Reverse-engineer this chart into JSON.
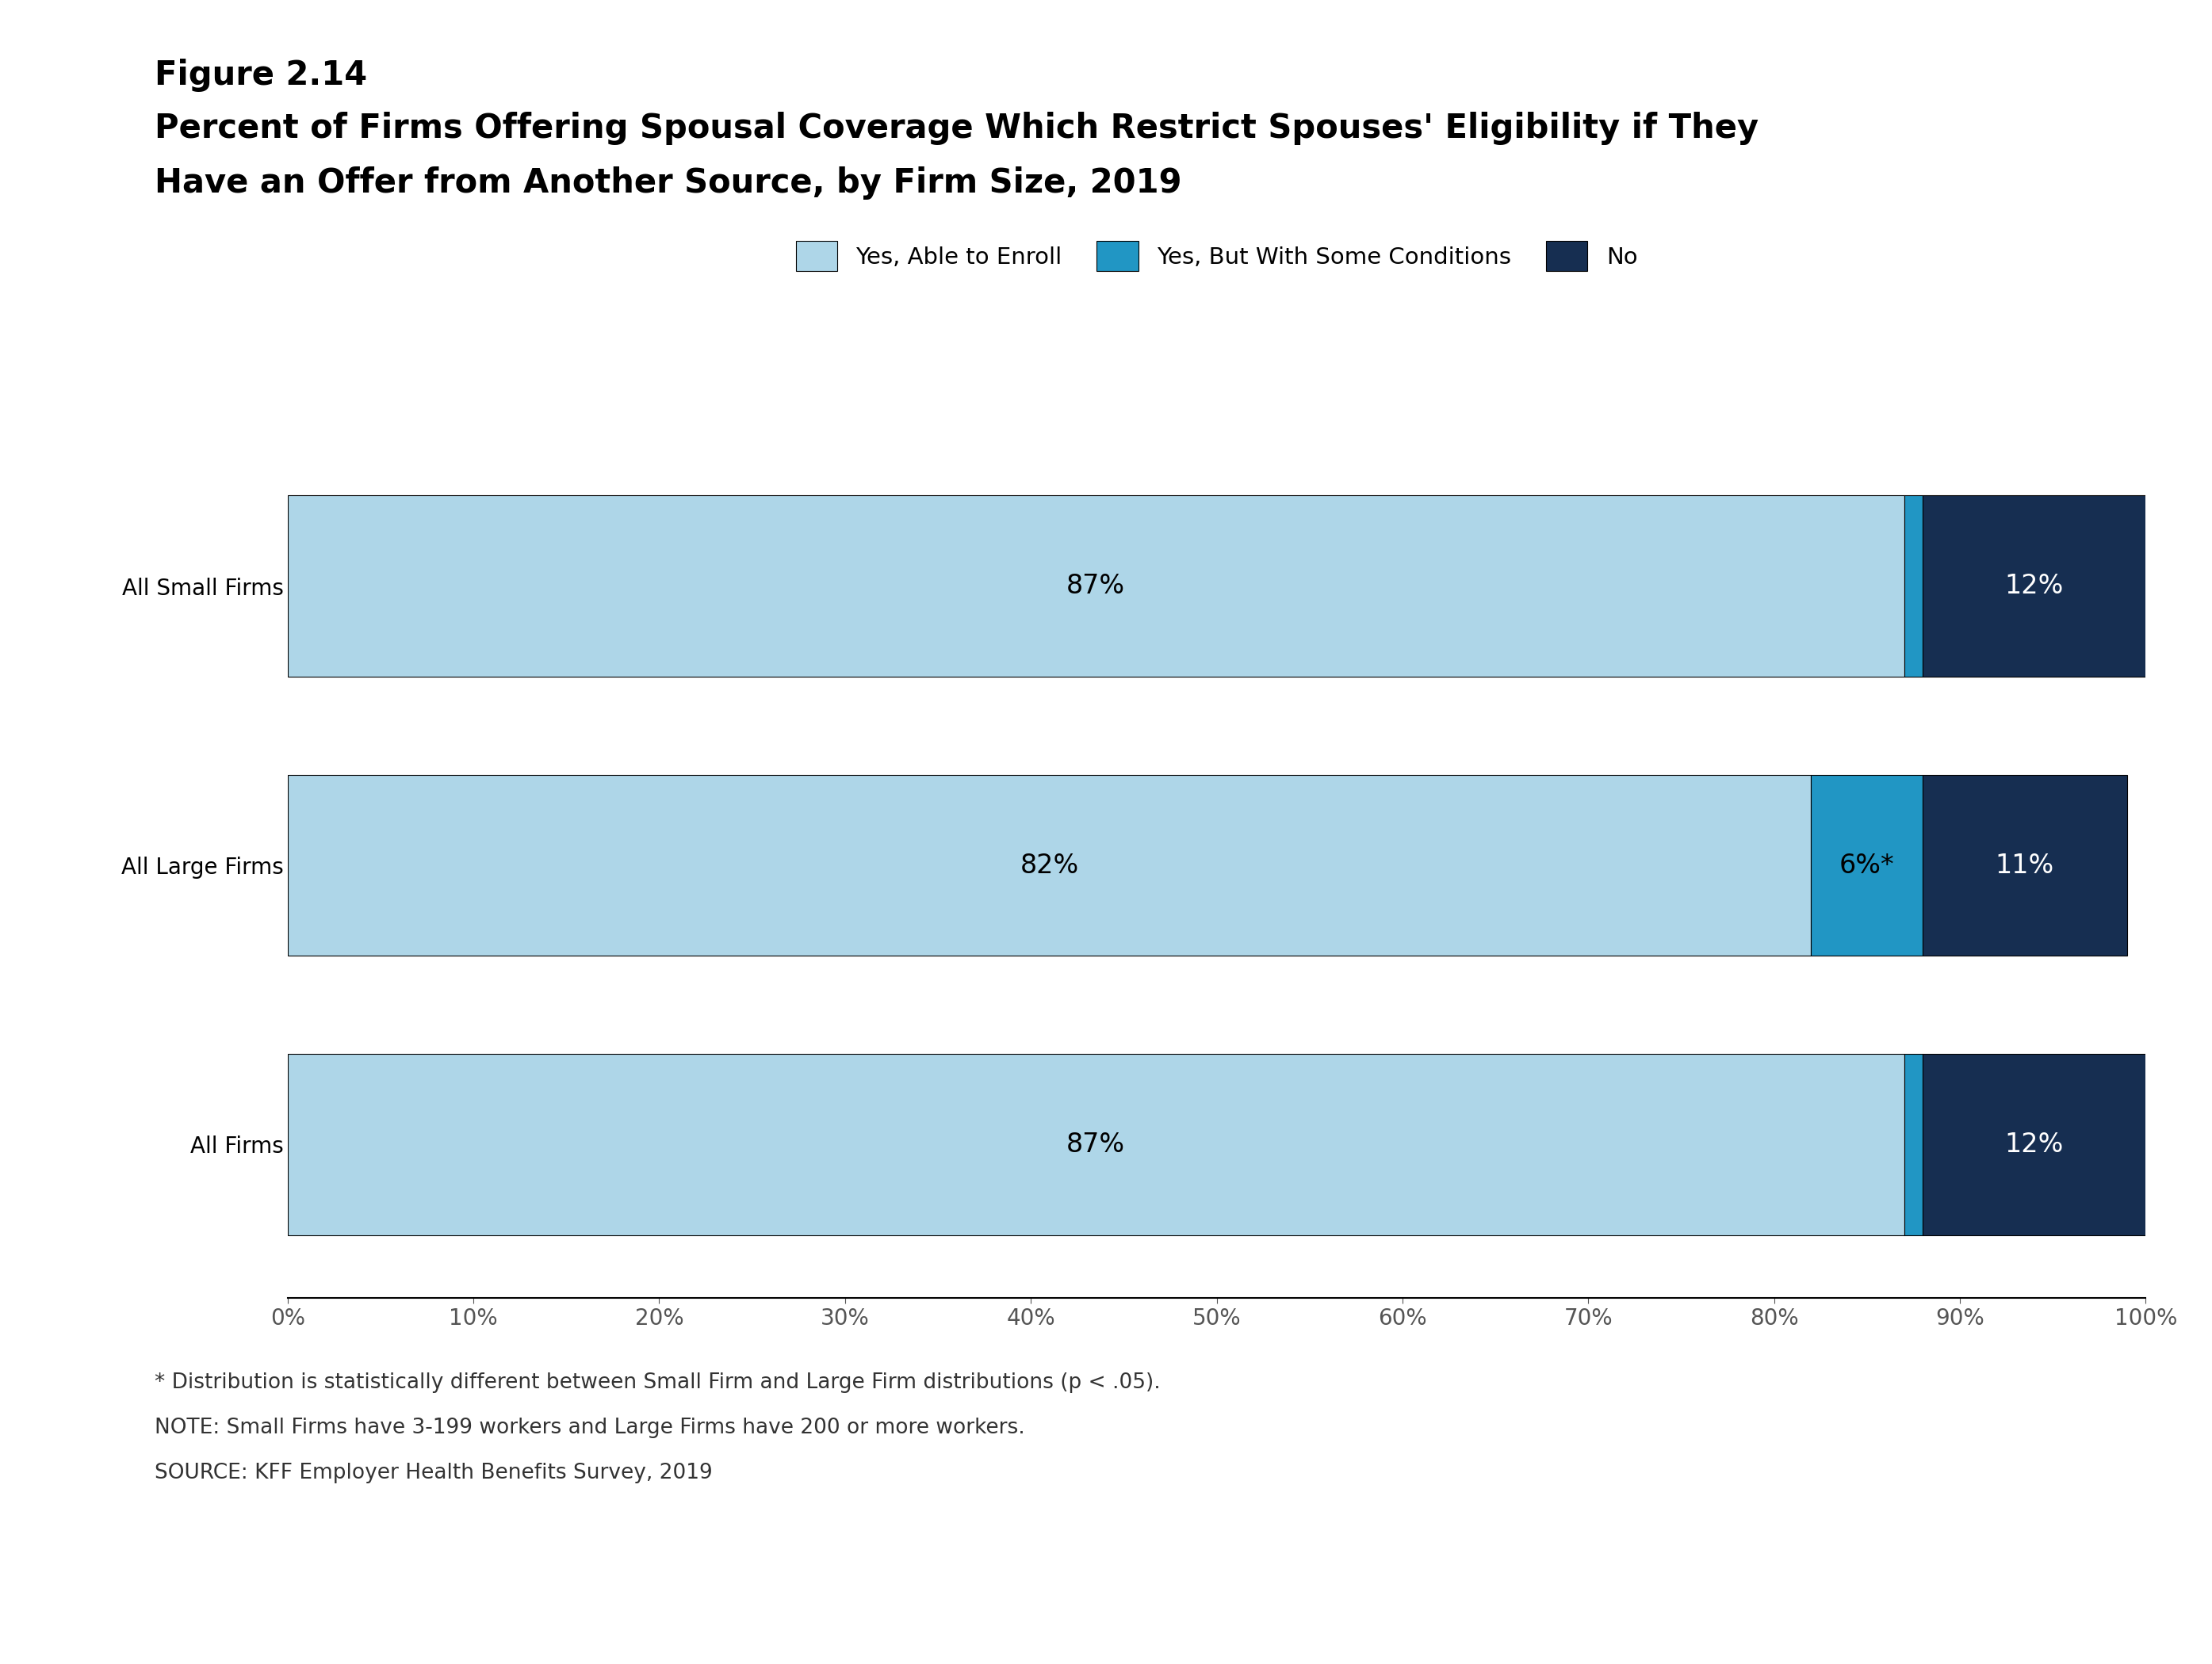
{
  "figure_label": "Figure 2.14",
  "title_line1": "Percent of Firms Offering Spousal Coverage Which Restrict Spouses' Eligibility if They",
  "title_line2": "Have an Offer from Another Source, by Firm Size, 2019",
  "categories": [
    "All Small Firms",
    "All Large Firms",
    "All Firms"
  ],
  "series": {
    "Yes, Able to Enroll": [
      87,
      82,
      87
    ],
    "Yes, But With Some Conditions": [
      1,
      6,
      1
    ],
    "No": [
      12,
      11,
      12
    ]
  },
  "bar_labels": {
    "Yes, Able to Enroll": [
      "87%",
      "82%",
      "87%"
    ],
    "Yes, But With Some Conditions": [
      "",
      "6%*",
      ""
    ],
    "No": [
      "12%",
      "11%",
      "12%"
    ]
  },
  "light_blue": "#aed6e8",
  "medium_blue": "#2196c4",
  "dark_blue": "#162e51",
  "xlim": [
    0,
    100
  ],
  "xticks": [
    0,
    10,
    20,
    30,
    40,
    50,
    60,
    70,
    80,
    90,
    100
  ],
  "footnote1": "* Distribution is statistically different between Small Firm and Large Firm distributions (p < .05).",
  "footnote2": "NOTE: Small Firms have 3-199 workers and Large Firms have 200 or more workers.",
  "footnote3": "SOURCE: KFF Employer Health Benefits Survey, 2019",
  "legend_labels": [
    "Yes, Able to Enroll",
    "Yes, But With Some Conditions",
    "No"
  ],
  "legend_colors": [
    "#aed6e8",
    "#2196c4",
    "#162e51"
  ],
  "bar_height": 0.65,
  "label_fontsize": 24,
  "tick_fontsize": 20,
  "ytick_fontsize": 20,
  "title_fontsize": 30,
  "figure_label_fontsize": 30,
  "footnote_fontsize": 19,
  "legend_fontsize": 21
}
